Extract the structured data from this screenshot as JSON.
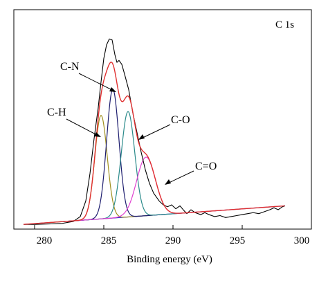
{
  "chart_data": {
    "type": "line",
    "xlabel": "Binding energy (eV)",
    "ylabel": "",
    "panel_label": "C 1s",
    "xlim": [
      278.5,
      300
    ],
    "ylim": [
      0,
      100
    ],
    "grid": false,
    "legend": "none",
    "x_ticks": [
      280,
      285,
      290,
      295,
      300
    ],
    "x_tick_labels": [
      "280",
      "285",
      "290",
      "295",
      "300"
    ],
    "measured": {
      "color": "#000000",
      "points": [
        [
          279.2,
          1.0
        ],
        [
          280,
          1.0
        ],
        [
          281,
          1.2
        ],
        [
          282,
          1.5
        ],
        [
          282.8,
          2.5
        ],
        [
          283.3,
          5.0
        ],
        [
          283.7,
          13.0
        ],
        [
          284.0,
          27.0
        ],
        [
          284.3,
          45.0
        ],
        [
          284.6,
          61.0
        ],
        [
          284.8,
          74.0
        ],
        [
          285.0,
          86.0
        ],
        [
          285.2,
          93.0
        ],
        [
          285.4,
          96.0
        ],
        [
          285.6,
          95.5
        ],
        [
          285.8,
          88.0
        ],
        [
          285.95,
          84.0
        ],
        [
          286.1,
          85.0
        ],
        [
          286.3,
          83.0
        ],
        [
          286.5,
          78.0
        ],
        [
          286.8,
          70.0
        ],
        [
          287.1,
          58.0
        ],
        [
          287.4,
          48.0
        ],
        [
          287.7,
          38.0
        ],
        [
          288.0,
          29.0
        ],
        [
          288.3,
          22.0
        ],
        [
          288.6,
          17.0
        ],
        [
          289.0,
          13.0
        ],
        [
          289.3,
          11.0
        ],
        [
          289.6,
          10.0
        ],
        [
          289.9,
          11.0
        ],
        [
          290.2,
          9.0
        ],
        [
          290.5,
          10.5
        ],
        [
          290.8,
          8.0
        ],
        [
          291.0,
          6.5
        ],
        [
          291.3,
          8.5
        ],
        [
          291.6,
          7.0
        ],
        [
          292.0,
          6.0
        ],
        [
          292.3,
          7.0
        ],
        [
          292.6,
          6.0
        ],
        [
          293.0,
          5.0
        ],
        [
          293.4,
          5.5
        ],
        [
          293.8,
          4.5
        ],
        [
          294.2,
          5.0
        ],
        [
          294.6,
          5.5
        ],
        [
          295.0,
          6.0
        ],
        [
          295.4,
          6.5
        ],
        [
          295.8,
          7.0
        ],
        [
          296.2,
          6.5
        ],
        [
          296.6,
          7.5
        ],
        [
          297.0,
          8.5
        ],
        [
          297.3,
          9.5
        ],
        [
          297.6,
          8.5
        ],
        [
          297.9,
          10.0
        ],
        [
          298.1,
          10.5
        ]
      ]
    },
    "baseline": {
      "color": "#3333cc",
      "x_start": 279.2,
      "x_end": 298.1,
      "y_start": 1.0,
      "y_end": 10.5
    },
    "envelope": {
      "color": "#e03030"
    },
    "components": [
      {
        "label": "C-H",
        "center": 284.8,
        "height": 53,
        "fwhm": 1.05,
        "color": "#a09020"
      },
      {
        "label": "C-N",
        "center": 285.65,
        "height": 66,
        "fwhm": 1.05,
        "color": "#1c1c6e"
      },
      {
        "label": "C-O",
        "center": 286.75,
        "height": 54,
        "fwhm": 1.15,
        "color": "#2a8a8a"
      },
      {
        "label": "C=O",
        "center": 288.05,
        "height": 30,
        "fwhm": 1.6,
        "color": "#e040d0"
      }
    ]
  }
}
